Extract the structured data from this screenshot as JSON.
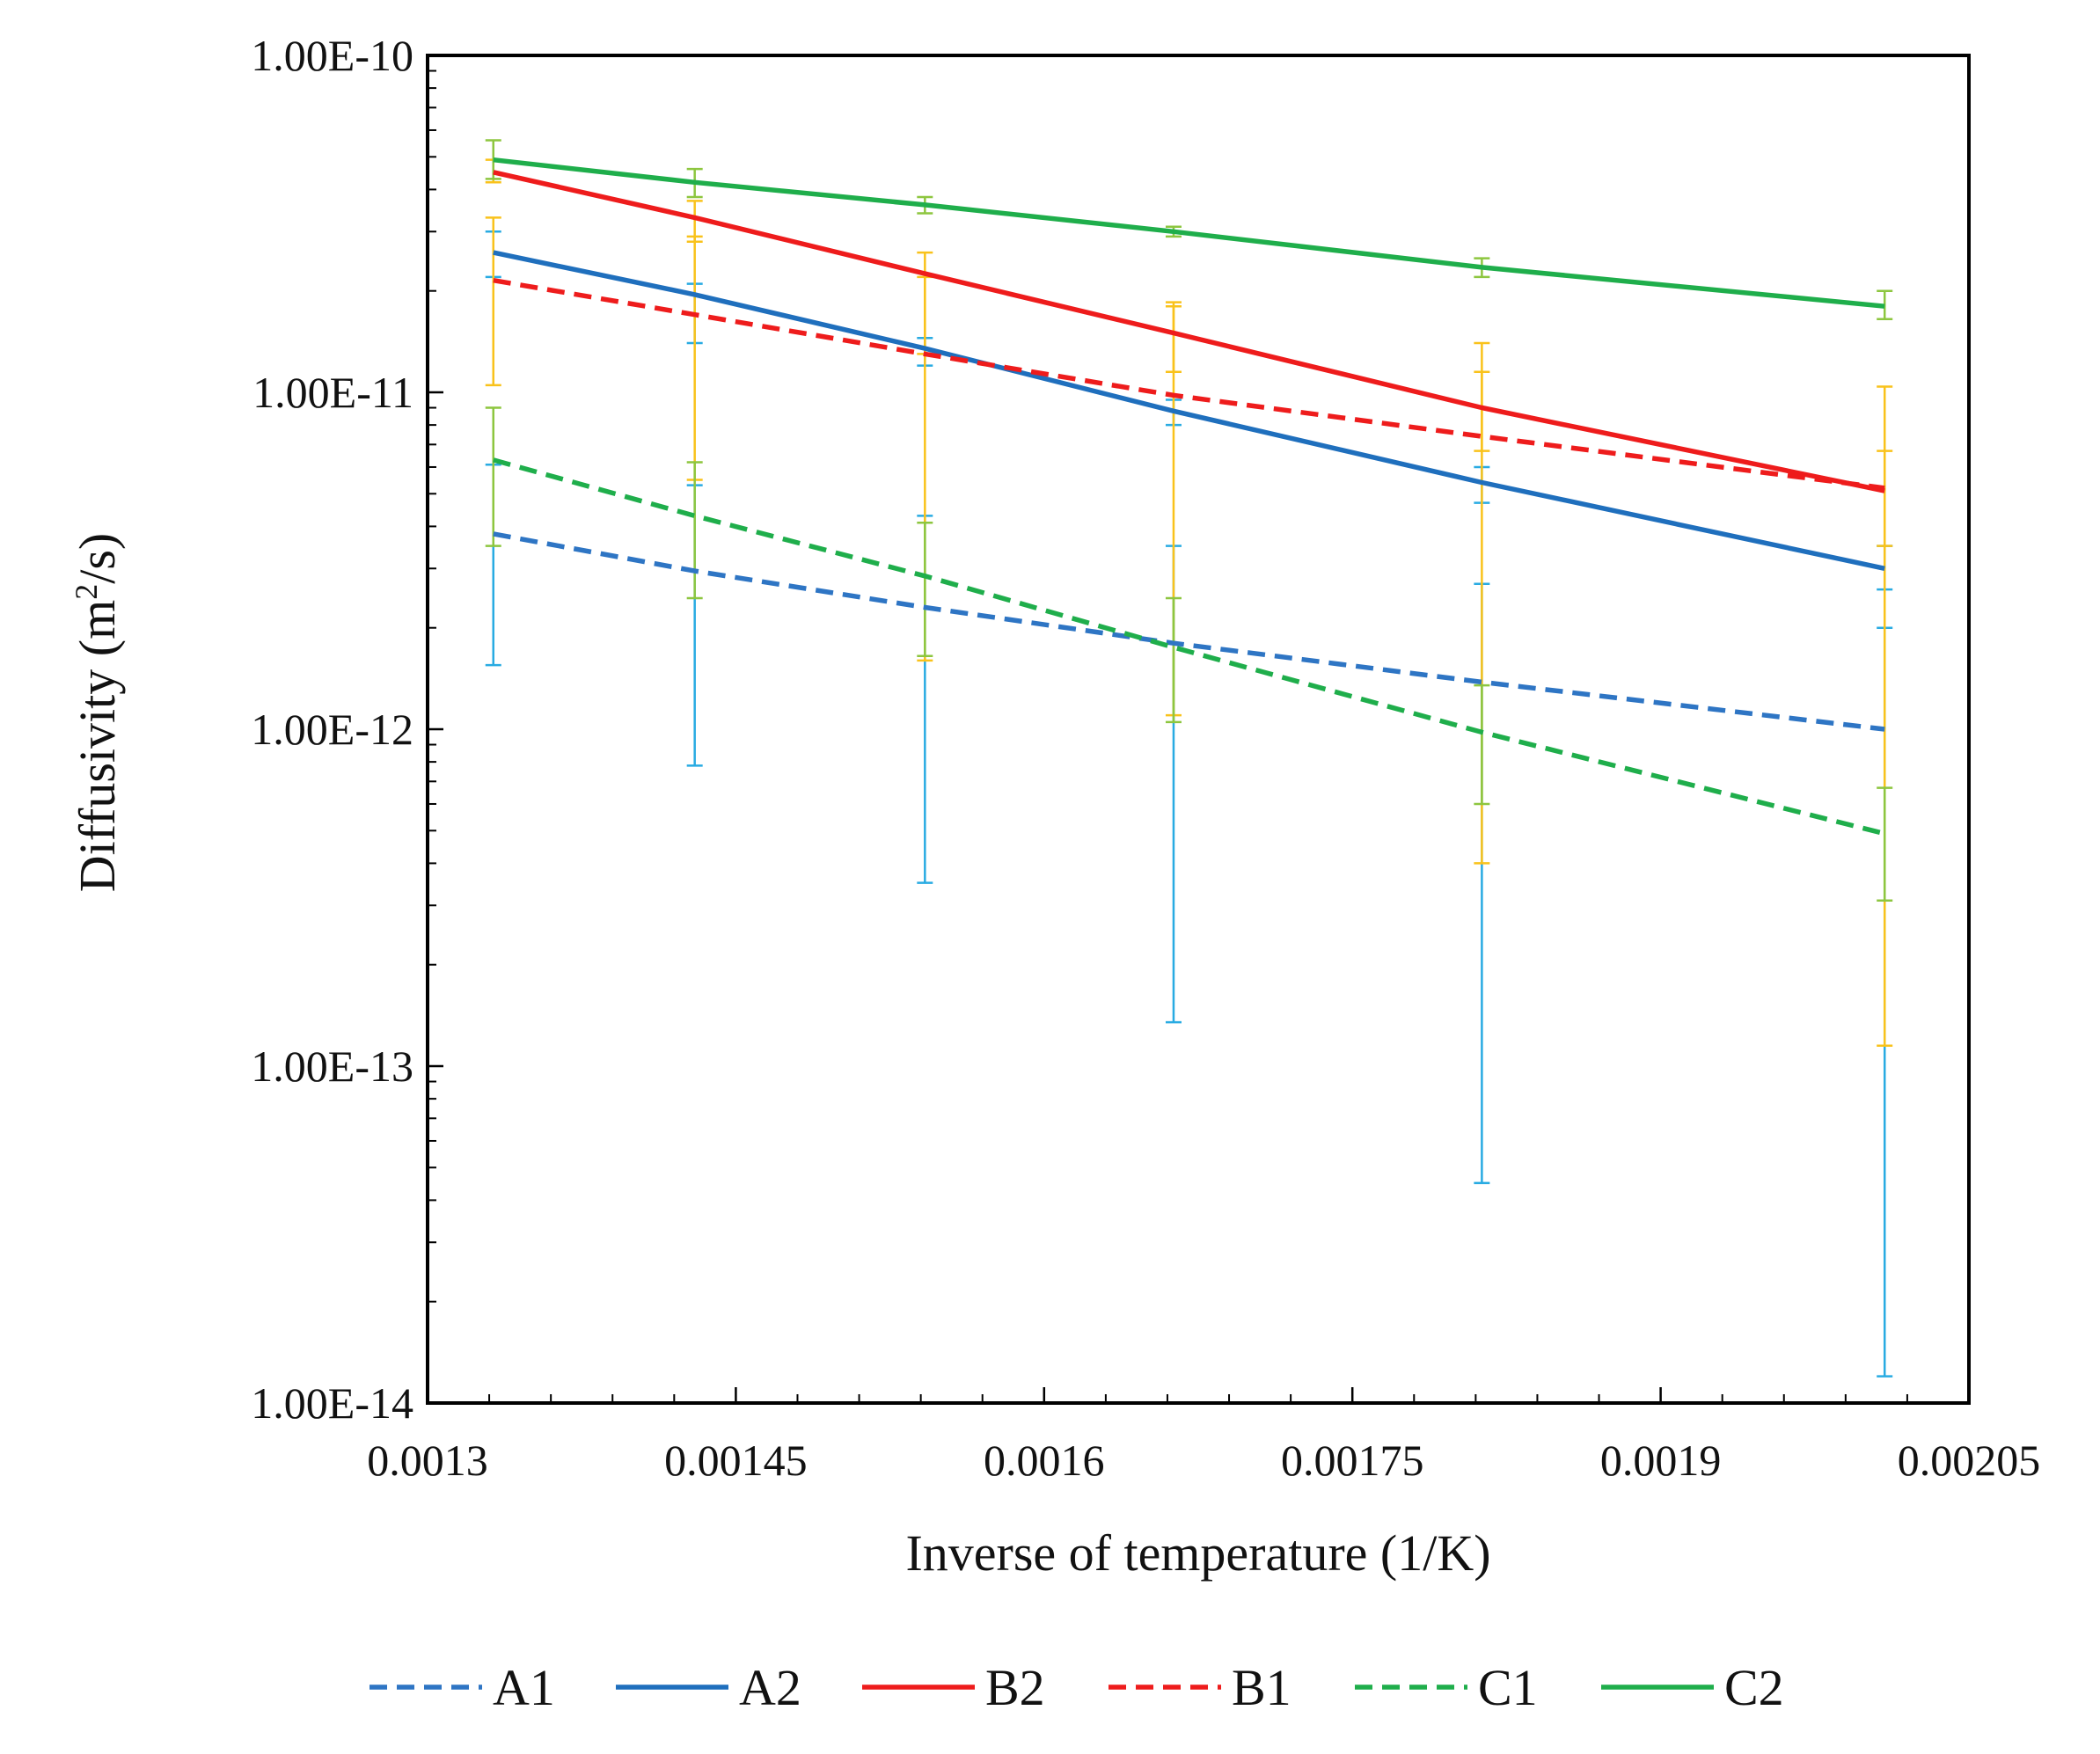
{
  "chart_data": {
    "type": "line",
    "xlabel": "Inverse of temperature (1/K)",
    "ylabel_main": "Diffusivity (m",
    "ylabel_sup": "2",
    "ylabel_end": "/s)",
    "xlim": [
      0.0013,
      0.00205
    ],
    "ylim": [
      1e-14,
      1e-10
    ],
    "y_scale": "log",
    "x_ticks": [
      "0.0013",
      "0.00145",
      "0.0016",
      "0.00175",
      "0.0019",
      "0.00205"
    ],
    "x_tick_values": [
      0.0013,
      0.00145,
      0.0016,
      0.00175,
      0.0019,
      0.00205
    ],
    "y_ticks": [
      "1.00E-10",
      "1.00E-11",
      "1.00E-12",
      "1.00E-13",
      "1.00E-14"
    ],
    "y_tick_values": [
      1e-10,
      1e-11,
      1e-12,
      1e-13,
      1e-14
    ],
    "grid": false,
    "legend_position": "bottom",
    "x_points": [
      0.001332,
      0.00143,
      0.001542,
      0.001663,
      0.001813,
      0.002009
    ],
    "series": [
      {
        "name": "A1",
        "color": "#2e75c4",
        "dash": true,
        "values": [
          3.8e-12,
          2.95e-12,
          2.3e-12,
          1.8e-12,
          1.38e-12,
          1e-12
        ],
        "errors": [
          [
            1.55e-12,
            6.1e-12
          ],
          [
            7.8e-13,
            5.3e-12
          ],
          [
            3.5e-13,
            4.3e-12
          ],
          [
            1.35e-13,
            3.5e-12
          ],
          [
            4.5e-14,
            2.7e-12
          ],
          [
            1.2e-14,
            2e-12
          ]
        ],
        "error_color": "#29abe2"
      },
      {
        "name": "A2",
        "color": "#1f6fbd",
        "dash": false,
        "values": [
          2.6e-11,
          1.95e-11,
          1.35e-11,
          8.8e-12,
          5.4e-12,
          3e-12
        ],
        "errors": [
          [
            2.2e-11,
            3e-11
          ],
          [
            1.4e-11,
            2.1e-11
          ],
          [
            1.2e-11,
            1.45e-11
          ],
          [
            8e-12,
            9.5e-12
          ],
          [
            4.7e-12,
            6e-12
          ],
          [
            2.6e-12,
            3.5e-12
          ]
        ],
        "error_color": "#29abe2"
      },
      {
        "name": "B2",
        "color": "#ee1c1c",
        "dash": false,
        "values": [
          4.5e-11,
          3.3e-11,
          2.25e-11,
          1.5e-11,
          9e-12,
          5.1e-12
        ],
        "errors": [
          [
            4.2e-11,
            4.9e-11
          ],
          [
            2.8e-11,
            3.7e-11
          ],
          [
            1.3e-11,
            2.6e-11
          ],
          [
            1.15e-11,
            1.85e-11
          ],
          [
            6.7e-12,
            1.15e-11
          ],
          [
            3.5e-12,
            6.7e-12
          ]
        ],
        "error_color": "#f9c21b"
      },
      {
        "name": "B1",
        "color": "#ee1c1c",
        "dash": true,
        "values": [
          2.15e-11,
          1.7e-11,
          1.3e-11,
          9.8e-12,
          7.4e-12,
          5.2e-12
        ],
        "errors": [
          [
            1.05e-11,
            3.3e-11
          ],
          [
            5.5e-12,
            2.9e-11
          ],
          [
            1.6e-12,
            2.2e-11
          ],
          [
            1.1e-12,
            1.8e-11
          ],
          [
            4e-13,
            1.4e-11
          ],
          [
            1.15e-13,
            1.04e-11
          ]
        ],
        "error_color": "#f9c21b"
      },
      {
        "name": "C1",
        "color": "#1fae4b",
        "dash": true,
        "values": [
          6.3e-12,
          4.3e-12,
          2.85e-12,
          1.75e-12,
          9.8e-13,
          4.9e-13
        ],
        "errors": [
          [
            3.5e-12,
            9e-12
          ],
          [
            2.45e-12,
            6.2e-12
          ],
          [
            1.65e-12,
            4.1e-12
          ],
          [
            1.05e-12,
            2.45e-12
          ],
          [
            6e-13,
            1.35e-12
          ],
          [
            3.1e-13,
            6.7e-13
          ]
        ],
        "error_color": "#8dc63f"
      },
      {
        "name": "C2",
        "color": "#1fae4b",
        "dash": false,
        "values": [
          4.9e-11,
          4.2e-11,
          3.6e-11,
          3e-11,
          2.35e-11,
          1.8e-11
        ],
        "errors": [
          [
            4.3e-11,
            5.6e-11
          ],
          [
            3.8e-11,
            4.6e-11
          ],
          [
            3.4e-11,
            3.8e-11
          ],
          [
            2.9e-11,
            3.1e-11
          ],
          [
            2.2e-11,
            2.5e-11
          ],
          [
            1.65e-11,
            2e-11
          ]
        ],
        "error_color": "#8dc63f"
      }
    ]
  }
}
